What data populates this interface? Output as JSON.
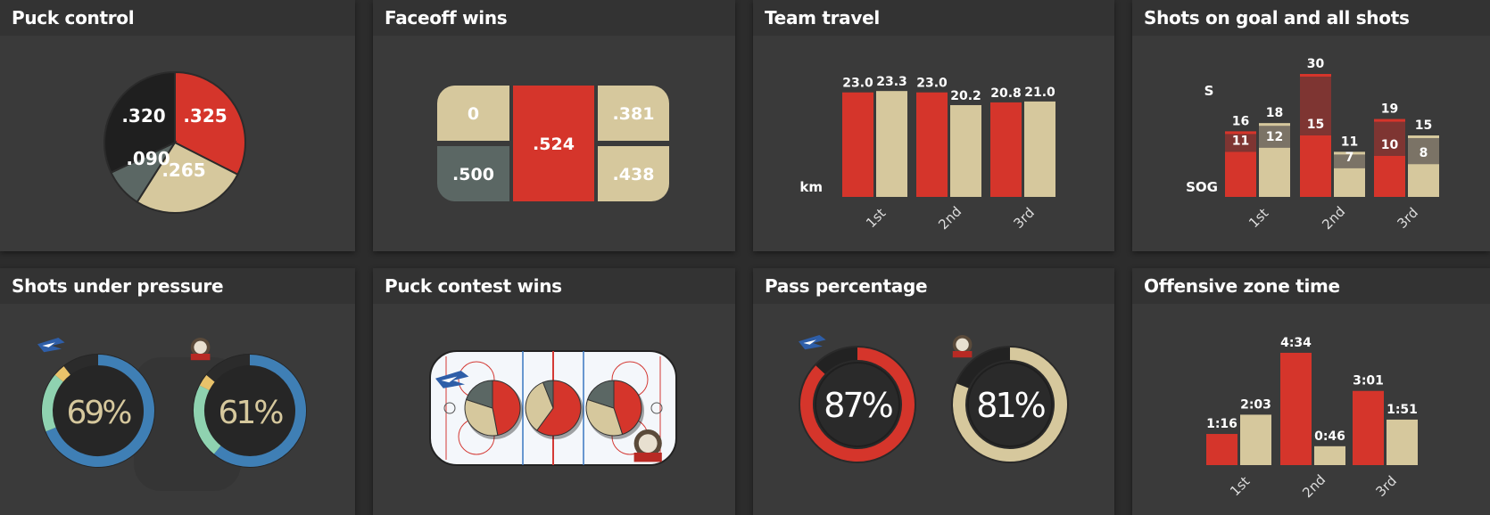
{
  "colors": {
    "red": "#d5352b",
    "tan": "#d6c89d",
    "dark": "#1f1f1f",
    "slate": "#5b6764",
    "blue": "#3f7fb5",
    "mint": "#8fd2b0",
    "gold": "#e9c26a",
    "panel": "#3a3a3a",
    "header": "#333333"
  },
  "panels": {
    "puck_control": {
      "title": "Puck control"
    },
    "faceoff_wins": {
      "title": "Faceoff wins"
    },
    "team_travel": {
      "title": "Team travel"
    },
    "shots": {
      "title": "Shots on goal and all shots"
    },
    "pressure": {
      "title": "Shots under pressure"
    },
    "contest": {
      "title": "Puck contest wins"
    },
    "pass": {
      "title": "Pass percentage"
    },
    "ozone": {
      "title": "Offensive zone time"
    }
  },
  "puck_control": {
    "slices": [
      {
        "label": ".325",
        "value": 0.325,
        "color": "red"
      },
      {
        "label": ".265",
        "value": 0.265,
        "color": "tan"
      },
      {
        "label": ".090",
        "value": 0.09,
        "color": "slate"
      },
      {
        "label": ".320",
        "value": 0.32,
        "color": "dark"
      }
    ]
  },
  "faceoff_wins": {
    "top_left": "0",
    "bottom_left": ".500",
    "center": ".524",
    "top_right": ".381",
    "bottom_right": ".438"
  },
  "team_travel": {
    "unit": "km",
    "categories": [
      "1st",
      "2nd",
      "3rd"
    ],
    "series": [
      {
        "color": "red",
        "values": [
          23.0,
          23.0,
          20.8
        ],
        "labels": [
          "23.0",
          "23.0",
          "20.8"
        ]
      },
      {
        "color": "tan",
        "values": [
          23.3,
          20.2,
          21.0
        ],
        "labels": [
          "23.3",
          "20.2",
          "21.0"
        ]
      }
    ]
  },
  "shots": {
    "label_s": "S",
    "label_sog": "SOG",
    "categories": [
      "1st",
      "2nd",
      "3rd"
    ],
    "groups": [
      {
        "team": "red",
        "shots": [
          16,
          30,
          19
        ],
        "sog": [
          11,
          15,
          10
        ]
      },
      {
        "team": "tan",
        "shots": [
          18,
          11,
          15
        ],
        "sog": [
          12,
          7,
          8
        ]
      }
    ]
  },
  "pressure": {
    "teams": [
      {
        "logo": "wild-wings-logo",
        "value": "69%",
        "pct": 0.69
      },
      {
        "logo": "lowen-logo",
        "value": "61%",
        "pct": 0.61
      }
    ]
  },
  "contest": {
    "pies": [
      {
        "zone": "left",
        "red": 0.47,
        "tan": 0.33,
        "slate": 0.2
      },
      {
        "zone": "center",
        "red": 0.6,
        "tan": 0.34,
        "slate": 0.06
      },
      {
        "zone": "right",
        "red": 0.45,
        "tan": 0.35,
        "slate": 0.2
      }
    ],
    "logos": [
      "wild-wings-logo",
      "lowen-logo"
    ]
  },
  "pass": {
    "teams": [
      {
        "logo": "wild-wings-logo",
        "value": "87%",
        "pct": 0.87,
        "color": "red"
      },
      {
        "logo": "lowen-logo",
        "value": "81%",
        "pct": 0.81,
        "color": "tan"
      }
    ]
  },
  "ozone": {
    "categories": [
      "1st",
      "2nd",
      "3rd"
    ],
    "series": [
      {
        "color": "red",
        "seconds": [
          76,
          274,
          181
        ],
        "labels": [
          "1:16",
          "4:34",
          "3:01"
        ]
      },
      {
        "color": "tan",
        "seconds": [
          123,
          46,
          111
        ],
        "labels": [
          "2:03",
          "0:46",
          "1:51"
        ]
      }
    ]
  }
}
